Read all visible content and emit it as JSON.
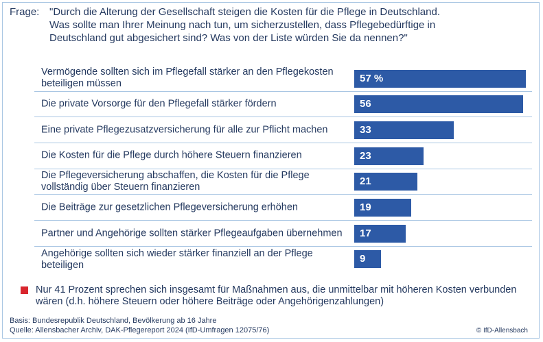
{
  "chart_data": {
    "type": "bar",
    "question_label": "Frage:",
    "question_lines": [
      "\"Durch die Alterung der Gesellschaft steigen die Kosten für die Pflege in Deutschland.",
      "Was sollte man Ihrer Meinung nach tun, um sicherzustellen, dass Pflegebedürftige in",
      "Deutschland gut abgesichert sind? Was von der Liste würden Sie da nennen?\""
    ],
    "categories": [
      "Vermögende sollten sich im Pflegefall stärker an den Pflegekosten beteiligen müssen",
      "Die private Vorsorge für den Pflegefall stärker fördern",
      "Eine private Pflegezusatzversicherung für alle zur Pflicht machen",
      "Die Kosten für die Pflege durch höhere Steuern finanzieren",
      "Die Pflegeversicherung abschaffen, die Kosten für die Pflege vollständig über Steuern finanzieren",
      "Die Beiträge zur gesetzlichen Pflegeversicherung erhöhen",
      "Partner und Angehörige sollten stärker Pflegeaufgaben übernehmen",
      "Angehörige sollten sich wieder stärker finanziell an der Pflege beteiligen"
    ],
    "values": [
      57,
      56,
      33,
      23,
      21,
      19,
      17,
      9
    ],
    "value_labels": [
      "57 %",
      "56",
      "33",
      "23",
      "21",
      "19",
      "17",
      "9"
    ],
    "color": "#2d5aa6",
    "note": "Nur 41 Prozent sprechen sich insgesamt für Maßnahmen aus, die unmittelbar mit höheren Kosten verbunden wären (d.h. höhere Steuern oder höhere Beiträge oder Angehörigenzahlungen)",
    "basis": "Basis: Bundesrepublik Deutschland, Bevölkerung ab 16 Jahre",
    "source": "Quelle: Allensbacher Archiv, DAK-Pflegereport 2024 (IfD-Umfragen 12075/76)",
    "copyright": "© IfD-Allensbach"
  }
}
